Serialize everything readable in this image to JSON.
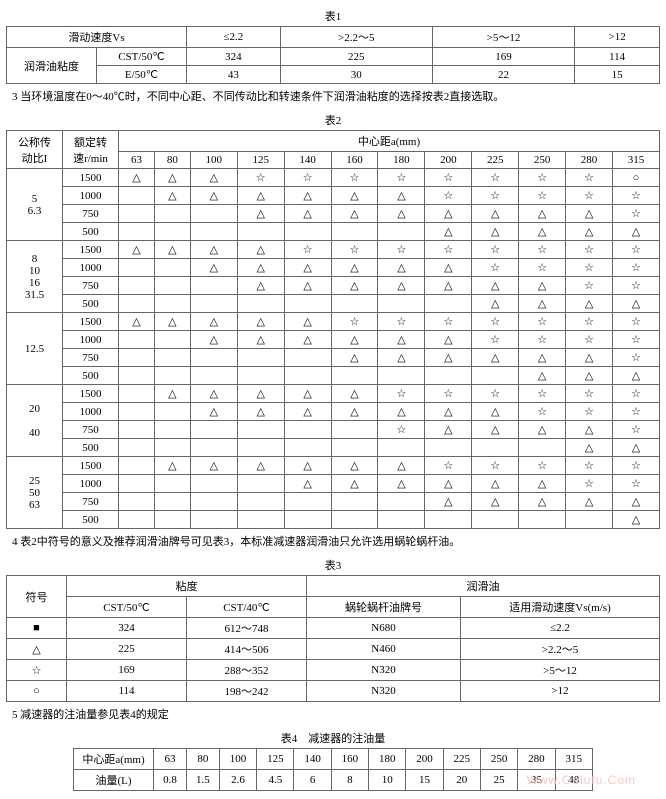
{
  "titles": {
    "t1": "表1",
    "t2": "表2",
    "t3": "表3",
    "t4": "表4　减速器的注油量"
  },
  "notes": {
    "n1": "3 当环境温度在0～40℃时，不同中心距、不同传动比和转速条件下润滑油粘度的选择按表2直接选取。",
    "n2": "4 表2中符号的意义及推荐润滑油牌号可见表3，本标准减速器润滑油只允许选用蜗轮蜗杆油。",
    "n3": "5 减速器的注油量参见表4的规定"
  },
  "t1": {
    "h": {
      "vs": "滑动速度Vs",
      "v1": "≤2.2",
      "v2": ">2.2～5",
      "v3": ">5～12",
      "v4": ">12",
      "label": "润滑油粘度",
      "r1": "CST/50℃",
      "r2": "E/50℃"
    },
    "row1": [
      "324",
      "225",
      "169",
      "114"
    ],
    "row2": [
      "43",
      "30",
      "22",
      "15"
    ]
  },
  "t2": {
    "h": {
      "ratio": "公称传\n动比I",
      "speed": "额定转\n速r/min",
      "center": "中心距a(mm)"
    },
    "cols": [
      "63",
      "80",
      "100",
      "125",
      "140",
      "160",
      "180",
      "200",
      "225",
      "250",
      "280",
      "315"
    ],
    "groups": [
      {
        "ratios": [
          "5",
          "6.3"
        ],
        "rows": [
          {
            "sp": "1500",
            "c": [
              "△",
              "△",
              "△",
              "☆",
              "☆",
              "☆",
              "☆",
              "☆",
              "☆",
              "☆",
              "☆",
              "○"
            ]
          },
          {
            "sp": "1000",
            "c": [
              "",
              "△",
              "△",
              "△",
              "△",
              "△",
              "△",
              "☆",
              "☆",
              "☆",
              "☆",
              "☆"
            ]
          },
          {
            "sp": "750",
            "c": [
              "",
              "",
              "",
              "△",
              "△",
              "△",
              "△",
              "△",
              "△",
              "△",
              "△",
              "☆"
            ]
          },
          {
            "sp": "500",
            "c": [
              "",
              "",
              "",
              "",
              "",
              "",
              "",
              "△",
              "△",
              "△",
              "△",
              "△"
            ]
          }
        ]
      },
      {
        "ratios": [
          "8",
          "10",
          "16",
          "31.5"
        ],
        "rows": [
          {
            "sp": "1500",
            "c": [
              "△",
              "△",
              "△",
              "△",
              "☆",
              "☆",
              "☆",
              "☆",
              "☆",
              "☆",
              "☆",
              "☆"
            ]
          },
          {
            "sp": "1000",
            "c": [
              "",
              "",
              "△",
              "△",
              "△",
              "△",
              "△",
              "△",
              "☆",
              "☆",
              "☆",
              "☆"
            ]
          },
          {
            "sp": "750",
            "c": [
              "",
              "",
              "",
              "△",
              "△",
              "△",
              "△",
              "△",
              "△",
              "△",
              "☆",
              "☆"
            ]
          },
          {
            "sp": "500",
            "c": [
              "",
              "",
              "",
              "",
              "",
              "",
              "",
              "",
              "△",
              "△",
              "△",
              "△"
            ]
          }
        ]
      },
      {
        "ratios": [
          "12.5"
        ],
        "rows": [
          {
            "sp": "1500",
            "c": [
              "△",
              "△",
              "△",
              "△",
              "△",
              "☆",
              "☆",
              "☆",
              "☆",
              "☆",
              "☆",
              "☆"
            ]
          },
          {
            "sp": "1000",
            "c": [
              "",
              "",
              "△",
              "△",
              "△",
              "△",
              "△",
              "△",
              "☆",
              "☆",
              "☆",
              "☆"
            ]
          },
          {
            "sp": "750",
            "c": [
              "",
              "",
              "",
              "",
              "",
              "△",
              "△",
              "△",
              "△",
              "△",
              "△",
              "☆"
            ]
          },
          {
            "sp": "500",
            "c": [
              "",
              "",
              "",
              "",
              "",
              "",
              "",
              "",
              "",
              "△",
              "△",
              "△"
            ]
          }
        ]
      },
      {
        "ratios": [
          "20",
          "",
          "40"
        ],
        "rows": [
          {
            "sp": "1500",
            "c": [
              "",
              "△",
              "△",
              "△",
              "△",
              "△",
              "☆",
              "☆",
              "☆",
              "☆",
              "☆",
              "☆"
            ]
          },
          {
            "sp": "1000",
            "c": [
              "",
              "",
              "△",
              "△",
              "△",
              "△",
              "△",
              "△",
              "△",
              "☆",
              "☆",
              "☆"
            ]
          },
          {
            "sp": "750",
            "c": [
              "",
              "",
              "",
              "",
              "",
              "",
              "☆",
              "△",
              "△",
              "△",
              "△",
              "☆"
            ]
          },
          {
            "sp": "500",
            "c": [
              "",
              "",
              "",
              "",
              "",
              "",
              "",
              "",
              "",
              "",
              "△",
              "△"
            ]
          }
        ]
      },
      {
        "ratios": [
          "25",
          "50",
          "63"
        ],
        "rows": [
          {
            "sp": "1500",
            "c": [
              "",
              "△",
              "△",
              "△",
              "△",
              "△",
              "△",
              "☆",
              "☆",
              "☆",
              "☆",
              "☆"
            ]
          },
          {
            "sp": "1000",
            "c": [
              "",
              "",
              "",
              "",
              "△",
              "△",
              "△",
              "△",
              "△",
              "△",
              "☆",
              "☆"
            ]
          },
          {
            "sp": "750",
            "c": [
              "",
              "",
              "",
              "",
              "",
              "",
              "",
              "△",
              "△",
              "△",
              "△",
              "△"
            ]
          },
          {
            "sp": "500",
            "c": [
              "",
              "",
              "",
              "",
              "",
              "",
              "",
              "",
              "",
              "",
              "",
              "△"
            ]
          }
        ]
      }
    ]
  },
  "t3": {
    "h": {
      "sym": "符号",
      "visc": "粘度",
      "oil": "润滑油",
      "c1": "CST/50℃",
      "c2": "CST/40℃",
      "c3": "蜗轮蜗杆油牌号",
      "c4": "适用滑动速度Vs(m/s)"
    },
    "rows": [
      {
        "s": "■",
        "a": "324",
        "b": "612～748",
        "c": "N680",
        "d": "≤2.2"
      },
      {
        "s": "△",
        "a": "225",
        "b": "414～506",
        "c": "N460",
        "d": ">2.2～5"
      },
      {
        "s": "☆",
        "a": "169",
        "b": "288～352",
        "c": "N320",
        "d": ">5～12"
      },
      {
        "s": "○",
        "a": "114",
        "b": "198～242",
        "c": "N320",
        "d": ">12"
      }
    ]
  },
  "t4": {
    "h": {
      "a": "中心距a(mm)",
      "b": "油量(L)"
    },
    "cols": [
      "63",
      "80",
      "100",
      "125",
      "140",
      "160",
      "180",
      "200",
      "225",
      "250",
      "280",
      "315"
    ],
    "vals": [
      "0.8",
      "1.5",
      "2.6",
      "4.5",
      "6",
      "8",
      "10",
      "15",
      "20",
      "25",
      "35",
      "48"
    ]
  },
  "watermark": "Www.Gelufu.Com"
}
